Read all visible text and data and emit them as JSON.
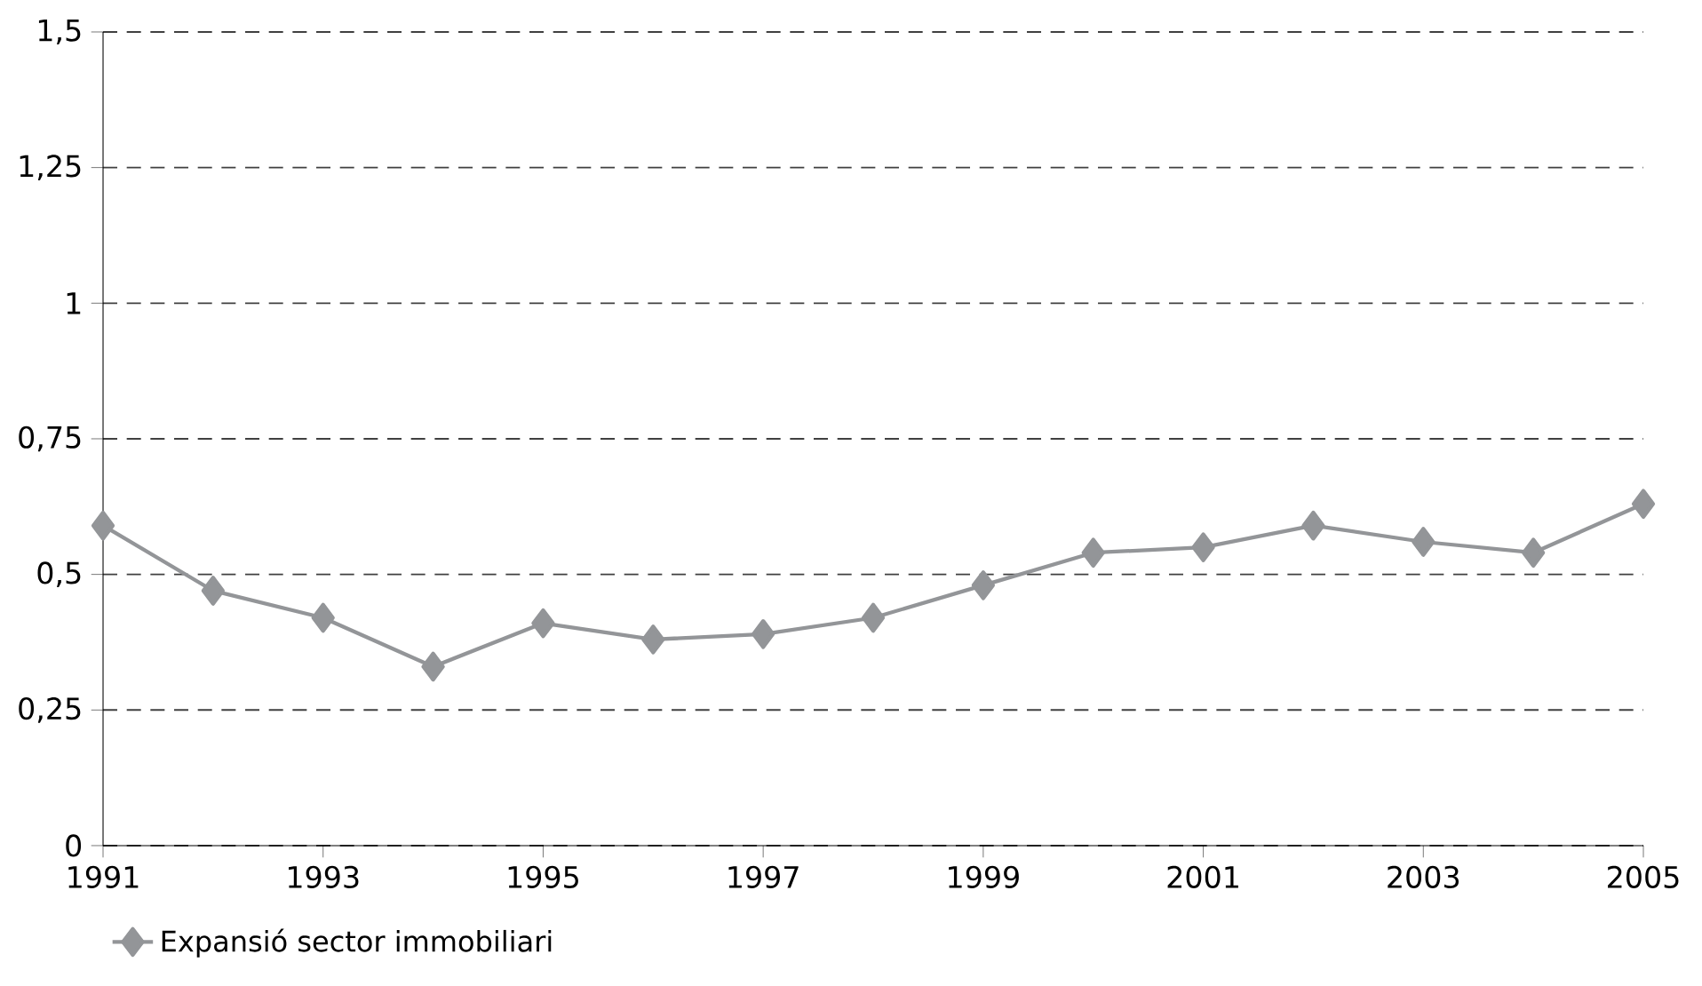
{
  "chart_data": {
    "type": "line",
    "x": [
      1991,
      1992,
      1993,
      1994,
      1995,
      1996,
      1997,
      1998,
      1999,
      2000,
      2001,
      2002,
      2003,
      2004,
      2005
    ],
    "series": [
      {
        "name": "Expansió sector immobiliari",
        "color": "#939598",
        "values": [
          0.59,
          0.47,
          0.42,
          0.33,
          0.41,
          0.38,
          0.39,
          0.42,
          0.48,
          0.54,
          0.55,
          0.59,
          0.56,
          0.54,
          0.63
        ]
      }
    ],
    "xlim": [
      1991,
      2005
    ],
    "xticks": [
      1991,
      1993,
      1995,
      1997,
      1999,
      2001,
      2003,
      2005
    ],
    "ylim": [
      0,
      1.5
    ],
    "yticks": [
      0,
      {
        "value": 0.25,
        "label": "0,25"
      },
      {
        "value": 0.5,
        "label": "0,5"
      },
      {
        "value": 0.75,
        "label": "0,75"
      },
      1,
      {
        "value": 1.25,
        "label": "1,25"
      },
      {
        "value": 1.5,
        "label": "1,5"
      }
    ],
    "grid": "y",
    "legend": "bottom left",
    "marker": "diamond",
    "line_style": "solid"
  }
}
